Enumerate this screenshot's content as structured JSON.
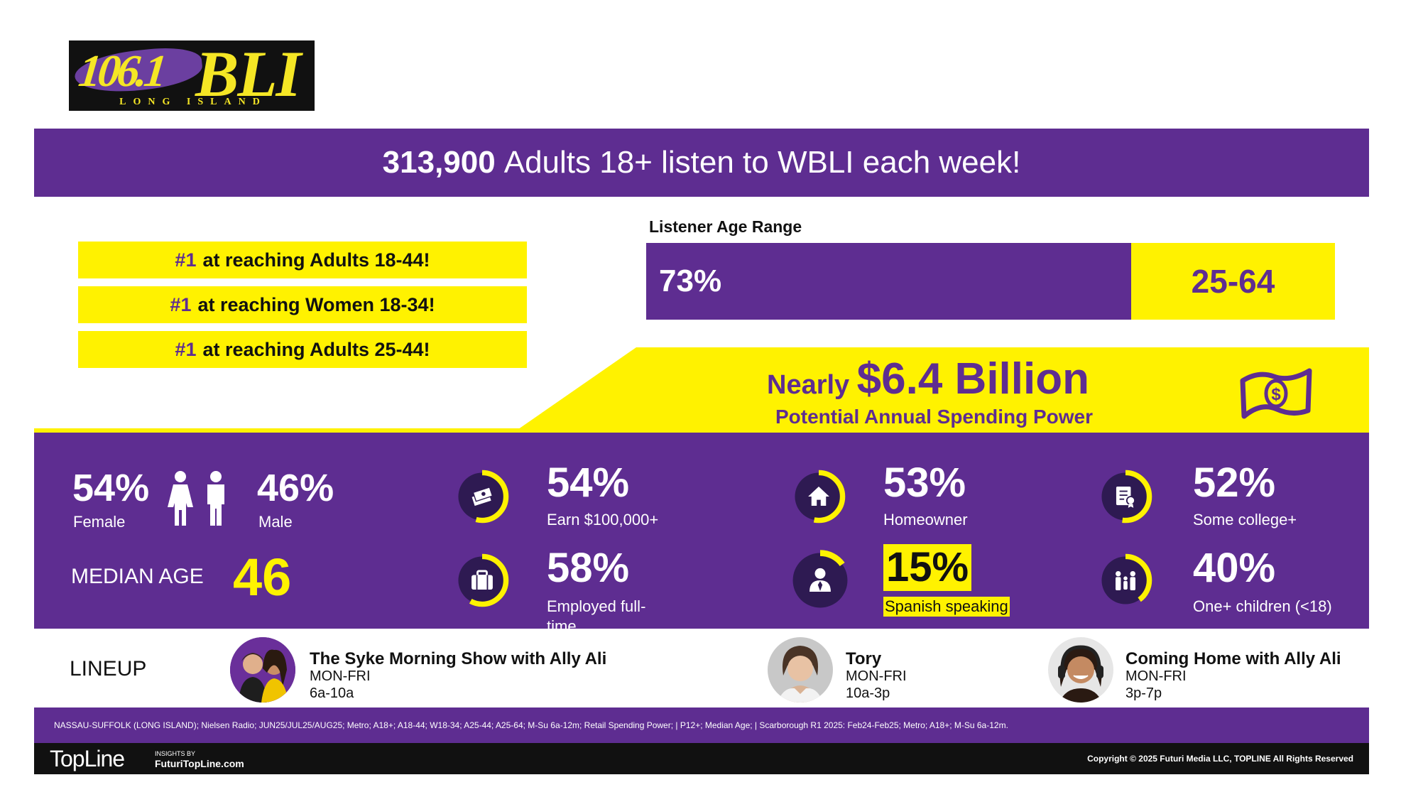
{
  "logo": {
    "frequency": "106.1",
    "call": "BLI",
    "sub": "LONG ISLAND"
  },
  "headline": {
    "number": "313,900",
    "text": "Adults 18+ listen to WBLI each week!"
  },
  "rankings": [
    {
      "hash": "#1",
      "text": "at reaching Adults 18-44!"
    },
    {
      "hash": "#1",
      "text": "at reaching Women 18-34!"
    },
    {
      "hash": "#1",
      "text": "at reaching Adults 25-44!"
    }
  ],
  "age_range": {
    "title": "Listener Age Range",
    "percent": "73%",
    "range": "25-64",
    "fill_fraction": 0.73
  },
  "spending": {
    "prefix": "Nearly",
    "amount": "$6.4 Billion",
    "subtitle": "Potential Annual Spending Power"
  },
  "gender": {
    "female_pct": "54%",
    "female_label": "Female",
    "male_pct": "46%",
    "male_label": "Male"
  },
  "median_age": {
    "label": "MEDIAN AGE",
    "value": "46"
  },
  "stats": [
    {
      "value": "54%",
      "label": "Earn $100,000+",
      "icon": "money-stack-icon",
      "fraction": 0.54,
      "highlight": false
    },
    {
      "value": "58%",
      "label": "Employed full-time",
      "icon": "briefcase-icon",
      "fraction": 0.58,
      "highlight": false
    },
    {
      "value": "53%",
      "label": "Homeowner",
      "icon": "house-icon",
      "fraction": 0.53,
      "highlight": false
    },
    {
      "value": "15%",
      "label": "Spanish speaking",
      "icon": "person-icon",
      "fraction": 0.15,
      "highlight": true
    },
    {
      "value": "52%",
      "label": "Some college+",
      "icon": "certificate-icon",
      "fraction": 0.52,
      "highlight": false
    },
    {
      "value": "40%",
      "label": "One+ children (<18)",
      "icon": "family-icon",
      "fraction": 0.4,
      "highlight": false
    }
  ],
  "lineup": {
    "label": "LINEUP",
    "shows": [
      {
        "name": "The Syke Morning Show with Ally Ali",
        "days": "MON-FRI",
        "time": "6a-10a"
      },
      {
        "name": "Tory",
        "days": "MON-FRI",
        "time": "10a-3p"
      },
      {
        "name": "Coming Home with Ally Ali",
        "days": "MON-FRI",
        "time": "3p-7p"
      }
    ]
  },
  "footer": {
    "source": "NASSAU-SUFFOLK (LONG ISLAND); Nielsen Radio; JUN25/JUL25/AUG25; Metro; A18+; A18-44; W18-34; A25-44; A25-64; M-Su 6a-12m; Retail Spending Power; | P12+; Median Age; | Scarborough R1 2025: Feb24-Feb25; Metro; A18+; M-Su 6a-12m.",
    "brand": "TopLine",
    "insights_by": "INSIGHTS BY",
    "site": "FuturiTopLine.com",
    "copyright": "Copyright © 2025 Futuri Media LLC, TOPLINE All Rights Reserved"
  },
  "colors": {
    "purple": "#5e2d91",
    "yellow": "#fff200",
    "dark_ring": "#2e1a52",
    "black": "#111111"
  }
}
